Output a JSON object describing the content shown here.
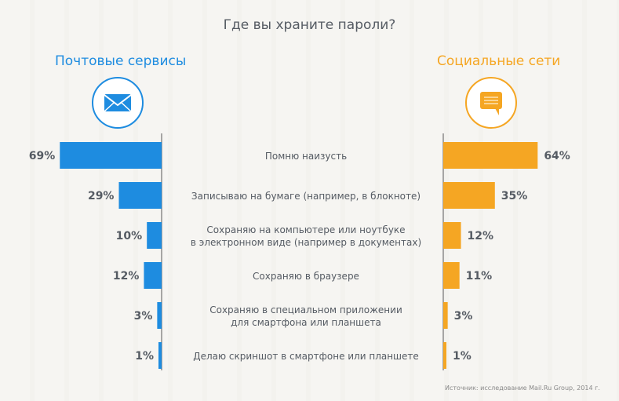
{
  "chart_data": {
    "type": "bar",
    "title": "Где вы храните пароли?",
    "categories": [
      "Помню наизусть",
      "Записываю на бумаге (например, в блокноте)",
      "Сохраняю на компьютере или ноутбуке\nв электронном виде (например в документах)",
      "Сохраняю в браузере",
      "Сохраняю в специальном приложении\nдля смартфона или планшета",
      "Делаю скриншот в смартфоне или планшете"
    ],
    "series": [
      {
        "name": "Почтовые сервисы",
        "values": [
          69,
          29,
          10,
          12,
          3,
          1
        ],
        "color": "#1e8ce0",
        "icon": "envelope-icon"
      },
      {
        "name": "Социальные сети",
        "values": [
          64,
          35,
          12,
          11,
          3,
          1
        ],
        "color": "#f5a623",
        "icon": "chat-bubble-icon"
      }
    ],
    "unit": "%",
    "xlim": [
      0,
      70
    ],
    "grid": false
  },
  "source": "Источник: исследование Mail.Ru Group, 2014 г."
}
